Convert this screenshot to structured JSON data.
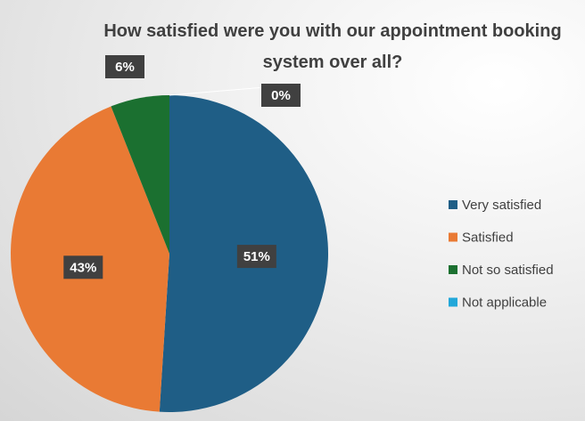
{
  "chart_data": {
    "type": "pie",
    "title": "How satisfied were you with our appointment booking system over all?",
    "categories": [
      "Very satisfied",
      "Satisfied",
      "Not so satisfied",
      "Not applicable"
    ],
    "values": [
      51,
      43,
      6,
      0
    ],
    "value_labels": [
      "51%",
      "43%",
      "6%",
      "0%"
    ],
    "colors": [
      "#1f5e86",
      "#e97a34",
      "#1b7030",
      "#22a7d9"
    ],
    "legend": "right"
  }
}
